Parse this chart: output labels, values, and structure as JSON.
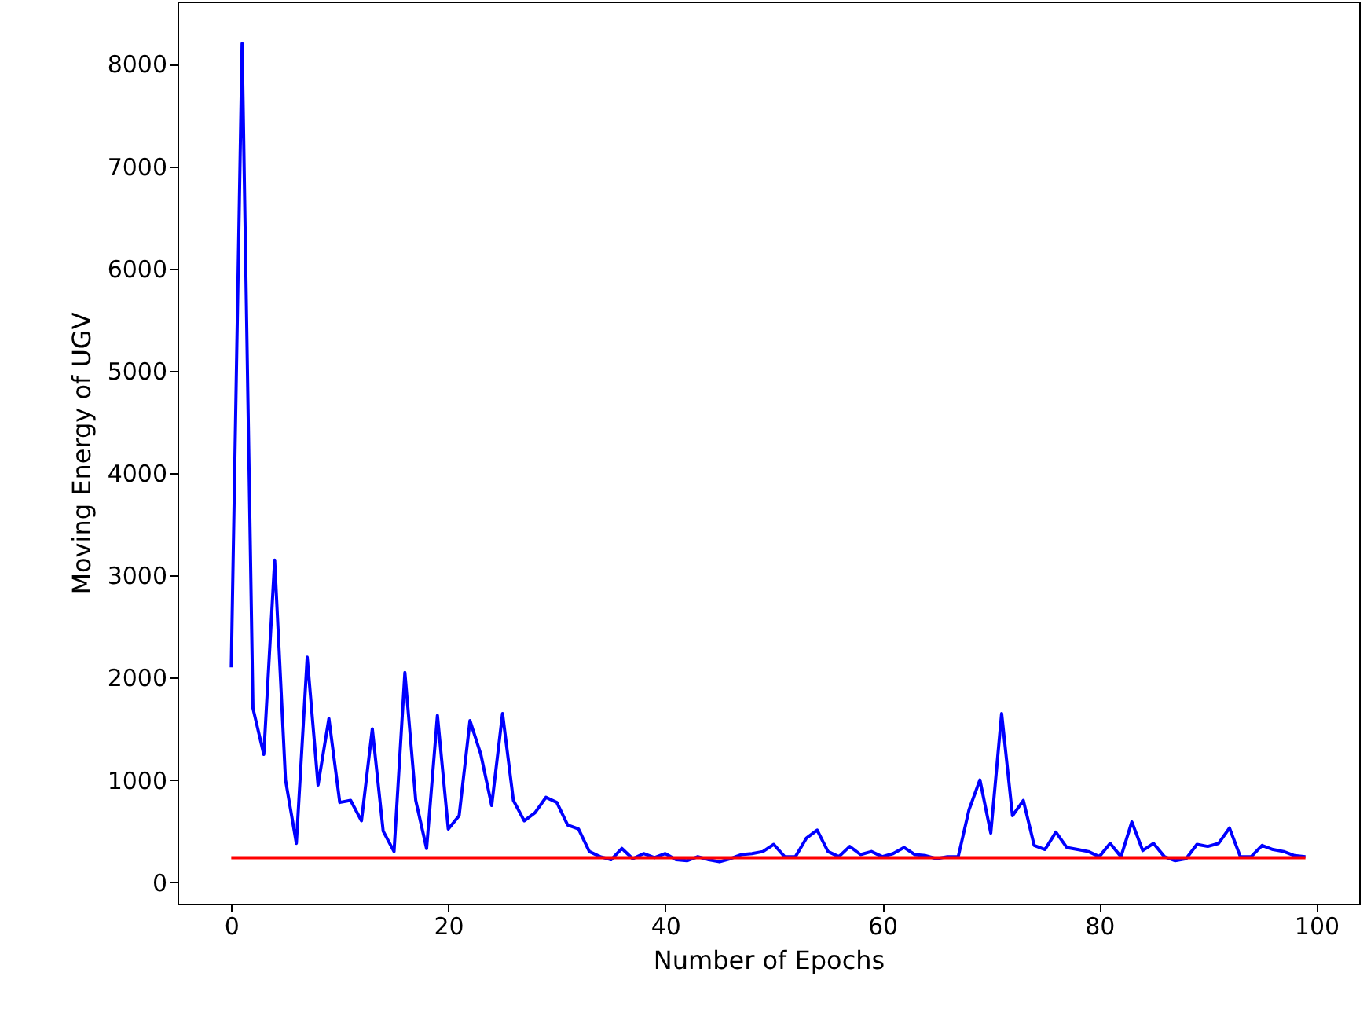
{
  "chart_data": {
    "type": "line",
    "xlabel": "Number of Epochs",
    "ylabel": "Moving Energy of UGV",
    "xlim": [
      -4.95,
      103.95
    ],
    "xticks": [
      0,
      20,
      40,
      60,
      80,
      100
    ],
    "ylim": [
      -210,
      8610
    ],
    "yticks": [
      0,
      1000,
      2000,
      3000,
      4000,
      5000,
      6000,
      7000,
      8000
    ],
    "grid": false,
    "series": [
      {
        "color": "#0000ff",
        "x": [
          0,
          1,
          2,
          3,
          4,
          5,
          6,
          7,
          8,
          9,
          10,
          11,
          12,
          13,
          14,
          15,
          16,
          17,
          18,
          19,
          20,
          21,
          22,
          23,
          24,
          25,
          26,
          27,
          28,
          29,
          30,
          31,
          32,
          33,
          34,
          35,
          36,
          37,
          38,
          39,
          40,
          41,
          42,
          43,
          44,
          45,
          46,
          47,
          48,
          49,
          50,
          51,
          52,
          53,
          54,
          55,
          56,
          57,
          58,
          59,
          60,
          61,
          62,
          63,
          64,
          65,
          66,
          67,
          68,
          69,
          70,
          71,
          72,
          73,
          74,
          75,
          76,
          77,
          78,
          79,
          80,
          81,
          82,
          83,
          84,
          85,
          86,
          87,
          88,
          89,
          90,
          91,
          92,
          93,
          94,
          95,
          96,
          97,
          98,
          99
        ],
        "values": [
          2100,
          8200,
          1700,
          1250,
          3150,
          1000,
          380,
          2200,
          950,
          1600,
          780,
          800,
          600,
          1500,
          500,
          300,
          2050,
          800,
          330,
          1630,
          520,
          650,
          1580,
          1250,
          750,
          1650,
          800,
          600,
          680,
          830,
          780,
          560,
          520,
          300,
          250,
          220,
          330,
          230,
          280,
          240,
          280,
          220,
          210,
          250,
          220,
          200,
          230,
          270,
          280,
          300,
          370,
          250,
          250,
          430,
          510,
          300,
          250,
          350,
          270,
          300,
          250,
          280,
          340,
          270,
          260,
          230,
          250,
          250,
          710,
          1000,
          480,
          1650,
          650,
          800,
          360,
          320,
          490,
          340,
          320,
          300,
          250,
          380,
          250,
          590,
          310,
          380,
          250,
          210,
          230,
          370,
          350,
          380,
          530,
          250,
          250,
          360,
          320,
          300,
          260,
          250
        ]
      },
      {
        "color": "#ff0000",
        "x": [
          0,
          99
        ],
        "values": [
          240,
          240
        ]
      }
    ]
  }
}
